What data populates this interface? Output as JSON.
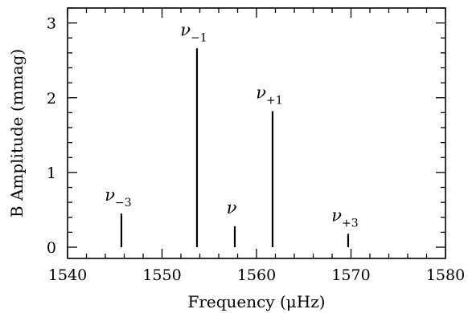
{
  "chart_data": {
    "type": "bar",
    "xlabel": "Frequency (μHz)",
    "ylabel": "B Amplitude (mmag)",
    "xlim": [
      1540,
      1580
    ],
    "ylim": [
      -0.15,
      3.2
    ],
    "xticks_major": [
      1540,
      1550,
      1560,
      1570,
      1580
    ],
    "xticks_minor_step": 2,
    "yticks_major": [
      0,
      1,
      2,
      3
    ],
    "yticks_minor_step": 0.2,
    "grid": false,
    "peaks": [
      {
        "label": "ν",
        "sub": "−3",
        "frequency": 1545.7,
        "amplitude": 0.45
      },
      {
        "label": "ν",
        "sub": "−1",
        "frequency": 1553.7,
        "amplitude": 2.66
      },
      {
        "label": "ν",
        "sub": "",
        "frequency": 1557.7,
        "amplitude": 0.28
      },
      {
        "label": "ν",
        "sub": "+1",
        "frequency": 1561.7,
        "amplitude": 1.82
      },
      {
        "label": "ν",
        "sub": "+3",
        "frequency": 1569.7,
        "amplitude": 0.18
      }
    ]
  }
}
